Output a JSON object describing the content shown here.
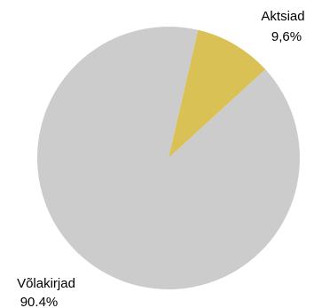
{
  "chart_data": {
    "type": "pie",
    "title": "",
    "slices": [
      {
        "name": "Aktsiad",
        "value": 9.6,
        "display": "9,6%",
        "color": "#d9c155"
      },
      {
        "name": "Võlakirjad",
        "value": 90.4,
        "display": "90.4%",
        "color": "#cccccc"
      }
    ],
    "start_angle_deg": 13,
    "direction": "clockwise",
    "legend": "none"
  }
}
